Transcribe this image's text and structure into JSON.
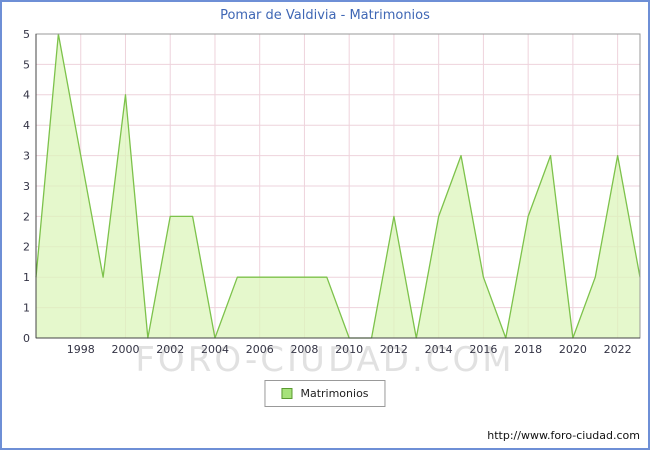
{
  "header": {
    "title": "Pomar de Valdivia - Matrimonios"
  },
  "legend": {
    "label": "Matrimonios"
  },
  "watermark_text": "FORO-CIUDAD.COM",
  "footer": {
    "url": "http://www.foro-ciudad.com"
  },
  "colors": {
    "frame_border": "#6e8fd6",
    "title_text": "#3f67b5",
    "grid": "#eed3dc",
    "plot_border": "#999999",
    "axis": "#444444",
    "area_fill": "#dcf5bb",
    "area_line": "#7dc24b",
    "tick_text": "#333344"
  },
  "chart_data": {
    "type": "area",
    "title": "Pomar de Valdivia - Matrimonios",
    "xlabel": "",
    "ylabel": "",
    "legend": "Matrimonios",
    "ylim": [
      0,
      5
    ],
    "x": [
      1996,
      1997,
      1998,
      1999,
      2000,
      2001,
      2002,
      2003,
      2004,
      2005,
      2006,
      2007,
      2008,
      2009,
      2010,
      2011,
      2012,
      2013,
      2014,
      2015,
      2016,
      2017,
      2018,
      2019,
      2020,
      2021,
      2022,
      2023
    ],
    "values": [
      1,
      5,
      3,
      1,
      4,
      0,
      2,
      2,
      0,
      1,
      1,
      1,
      1,
      1,
      0,
      0,
      2,
      0,
      2,
      3,
      1,
      0,
      2,
      3,
      0,
      1,
      3,
      1
    ],
    "x_tick_labels": [
      1998,
      2000,
      2002,
      2004,
      2006,
      2008,
      2010,
      2012,
      2014,
      2016,
      2018,
      2020,
      2022
    ],
    "y_ticks": [
      {
        "v": 5.0,
        "label": "5"
      },
      {
        "v": 4.5,
        "label": "5"
      },
      {
        "v": 4.0,
        "label": "4"
      },
      {
        "v": 3.5,
        "label": "4"
      },
      {
        "v": 3.0,
        "label": "3"
      },
      {
        "v": 2.5,
        "label": "3"
      },
      {
        "v": 2.0,
        "label": "2"
      },
      {
        "v": 1.5,
        "label": "2"
      },
      {
        "v": 1.0,
        "label": "1"
      },
      {
        "v": 0.5,
        "label": "1"
      },
      {
        "v": 0.0,
        "label": "0"
      }
    ],
    "grid": true,
    "legend_position": "bottom-center"
  }
}
